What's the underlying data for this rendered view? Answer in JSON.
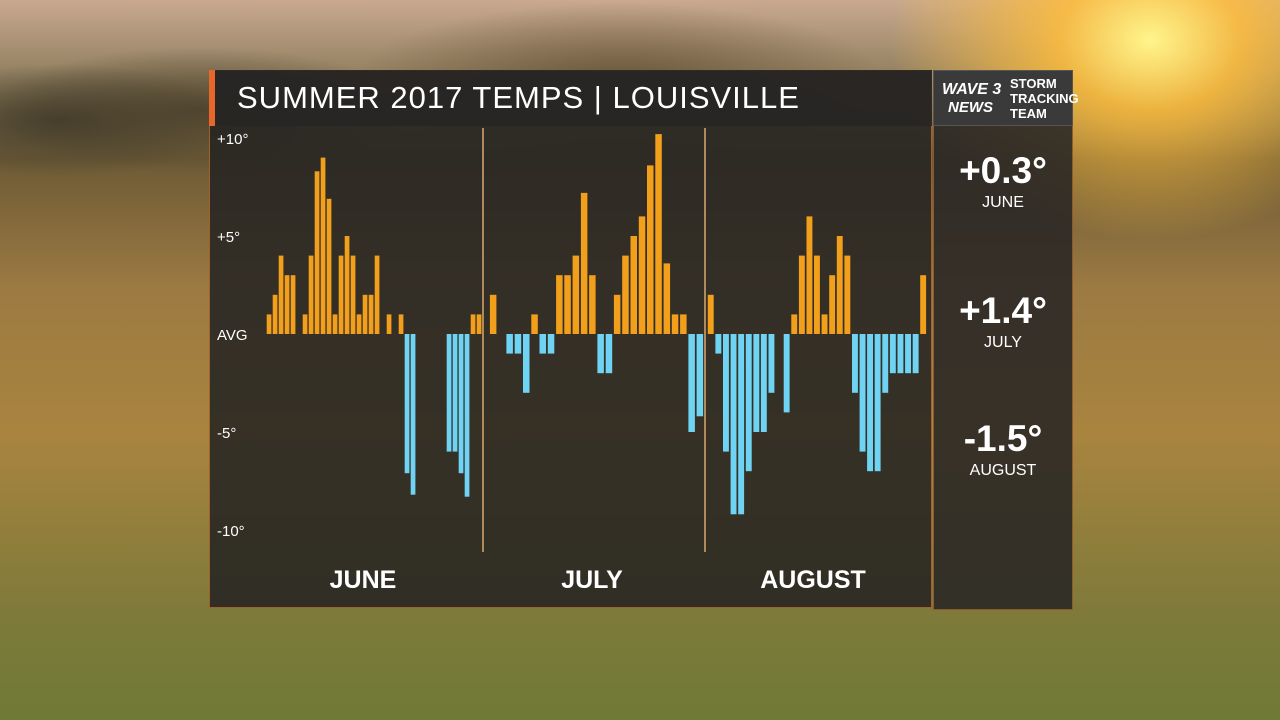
{
  "header": {
    "title": "SUMMER 2017 TEMPS  |  LOUISVILLE"
  },
  "logo": {
    "wave": "WAVE 3",
    "news": "NEWS",
    "team_lines": [
      "STORM",
      "TRACKING",
      "TEAM"
    ]
  },
  "monthly_anomalies": [
    {
      "value": "+0.3°",
      "month": "JUNE"
    },
    {
      "value": "+1.4°",
      "month": "JULY"
    },
    {
      "value": "-1.5°",
      "month": "AUGUST"
    }
  ],
  "colors": {
    "above": "#f2a01c",
    "below": "#6fd3f3",
    "accent": "#e8662a"
  },
  "icons": [
    "wave-3-news-logo"
  ],
  "chart_data": {
    "type": "bar",
    "title": "SUMMER 2017 TEMPS | LOUISVILLE",
    "ylabel": "",
    "y_ticks": [
      {
        "value": 10,
        "label": "+10°"
      },
      {
        "value": 5,
        "label": "+5°"
      },
      {
        "value": 0,
        "label": "AVG"
      },
      {
        "value": -5,
        "label": "-5°"
      },
      {
        "value": -10,
        "label": "-10°"
      }
    ],
    "ylim": [
      -10,
      10
    ],
    "legend": "none",
    "grid": false,
    "months": [
      {
        "name": "JUNE",
        "values": [
          1,
          2,
          4,
          3,
          3,
          0,
          1,
          4,
          8.3,
          9,
          6.9,
          1,
          4,
          5,
          4,
          1,
          2,
          2,
          4,
          0,
          1,
          0,
          1,
          -7.1,
          -8.2,
          0,
          0,
          0,
          0,
          0,
          -6,
          -6,
          -7.1,
          -8.3,
          1,
          1
        ]
      },
      {
        "name": "JULY",
        "values": [
          2,
          0,
          -1,
          -1,
          -3,
          1,
          -1,
          -1,
          3,
          3,
          4,
          7.2,
          3,
          -2,
          -2,
          2,
          4,
          5,
          6,
          8.6,
          10.2,
          3.6,
          1,
          1,
          -5,
          -4.2
        ]
      },
      {
        "name": "AUGUST",
        "values": [
          2,
          -1,
          -6,
          -9.2,
          -9.2,
          -7,
          -5,
          -5,
          -3,
          0,
          -4,
          1,
          4,
          6,
          4,
          1,
          3,
          5,
          4,
          -3,
          -6,
          -7,
          -7,
          -3,
          -2,
          -2,
          -2,
          -2,
          3
        ]
      }
    ]
  }
}
